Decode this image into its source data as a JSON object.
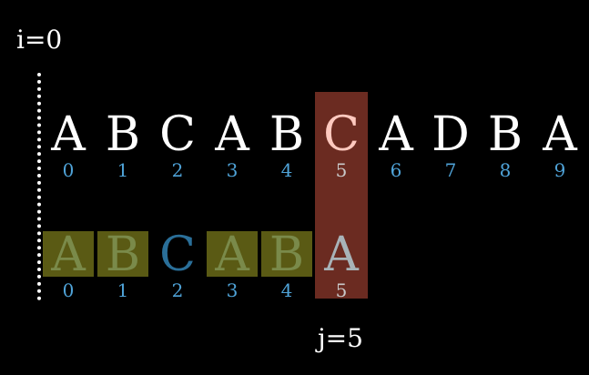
{
  "i_label": "i=0",
  "j_label": "j=5",
  "text": {
    "chars": [
      "A",
      "B",
      "C",
      "A",
      "B",
      "C",
      "A",
      "D",
      "B",
      "A"
    ],
    "indices": [
      "0",
      "1",
      "2",
      "3",
      "4",
      "5",
      "6",
      "7",
      "8",
      "9"
    ]
  },
  "pattern": {
    "chars": [
      "A",
      "B",
      "C",
      "A",
      "B",
      "A"
    ],
    "indices": [
      "0",
      "1",
      "2",
      "3",
      "4",
      "5"
    ],
    "highlighted": [
      true,
      true,
      false,
      true,
      true,
      false
    ]
  },
  "active_index": 5,
  "colors": {
    "background": "#000000",
    "column_highlight": "#6b2b21",
    "prefix_highlight": "#5a5a14",
    "index_color": "#4fa3d8"
  }
}
